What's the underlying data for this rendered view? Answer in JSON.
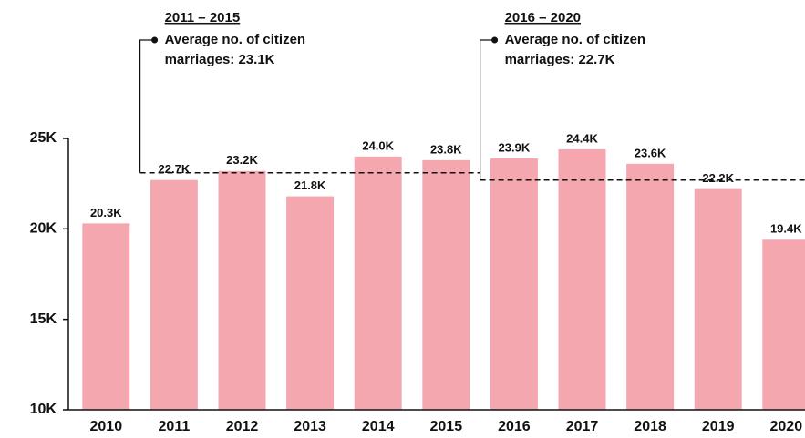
{
  "chart_data": {
    "type": "bar",
    "categories": [
      "2010",
      "2011",
      "2012",
      "2013",
      "2014",
      "2015",
      "2016",
      "2017",
      "2018",
      "2019",
      "2020"
    ],
    "values": [
      20300,
      22700,
      23200,
      21800,
      24000,
      23800,
      23900,
      24400,
      23600,
      22200,
      19400
    ],
    "value_labels": [
      "20.3K",
      "22.7K",
      "23.2K",
      "21.8K",
      "24.0K",
      "23.8K",
      "23.9K",
      "24.4K",
      "23.6K",
      "22.2K",
      "19.4K"
    ],
    "color": "#f5a7b0",
    "ylim": [
      10000,
      25000
    ],
    "yticks": [
      {
        "value": 10000,
        "label": "10K"
      },
      {
        "value": 15000,
        "label": "15K"
      },
      {
        "value": 20000,
        "label": "20K"
      },
      {
        "value": 25000,
        "label": "25K"
      }
    ],
    "annotations": [
      {
        "period": "2011 – 2015",
        "text": [
          "Average no. of citizen",
          "marriages: 23.1K"
        ],
        "value": 23100
      },
      {
        "period": "2016 – 2020",
        "text": [
          "Average no. of citizen",
          "marriages: 22.7K"
        ],
        "value": 22700
      }
    ]
  }
}
